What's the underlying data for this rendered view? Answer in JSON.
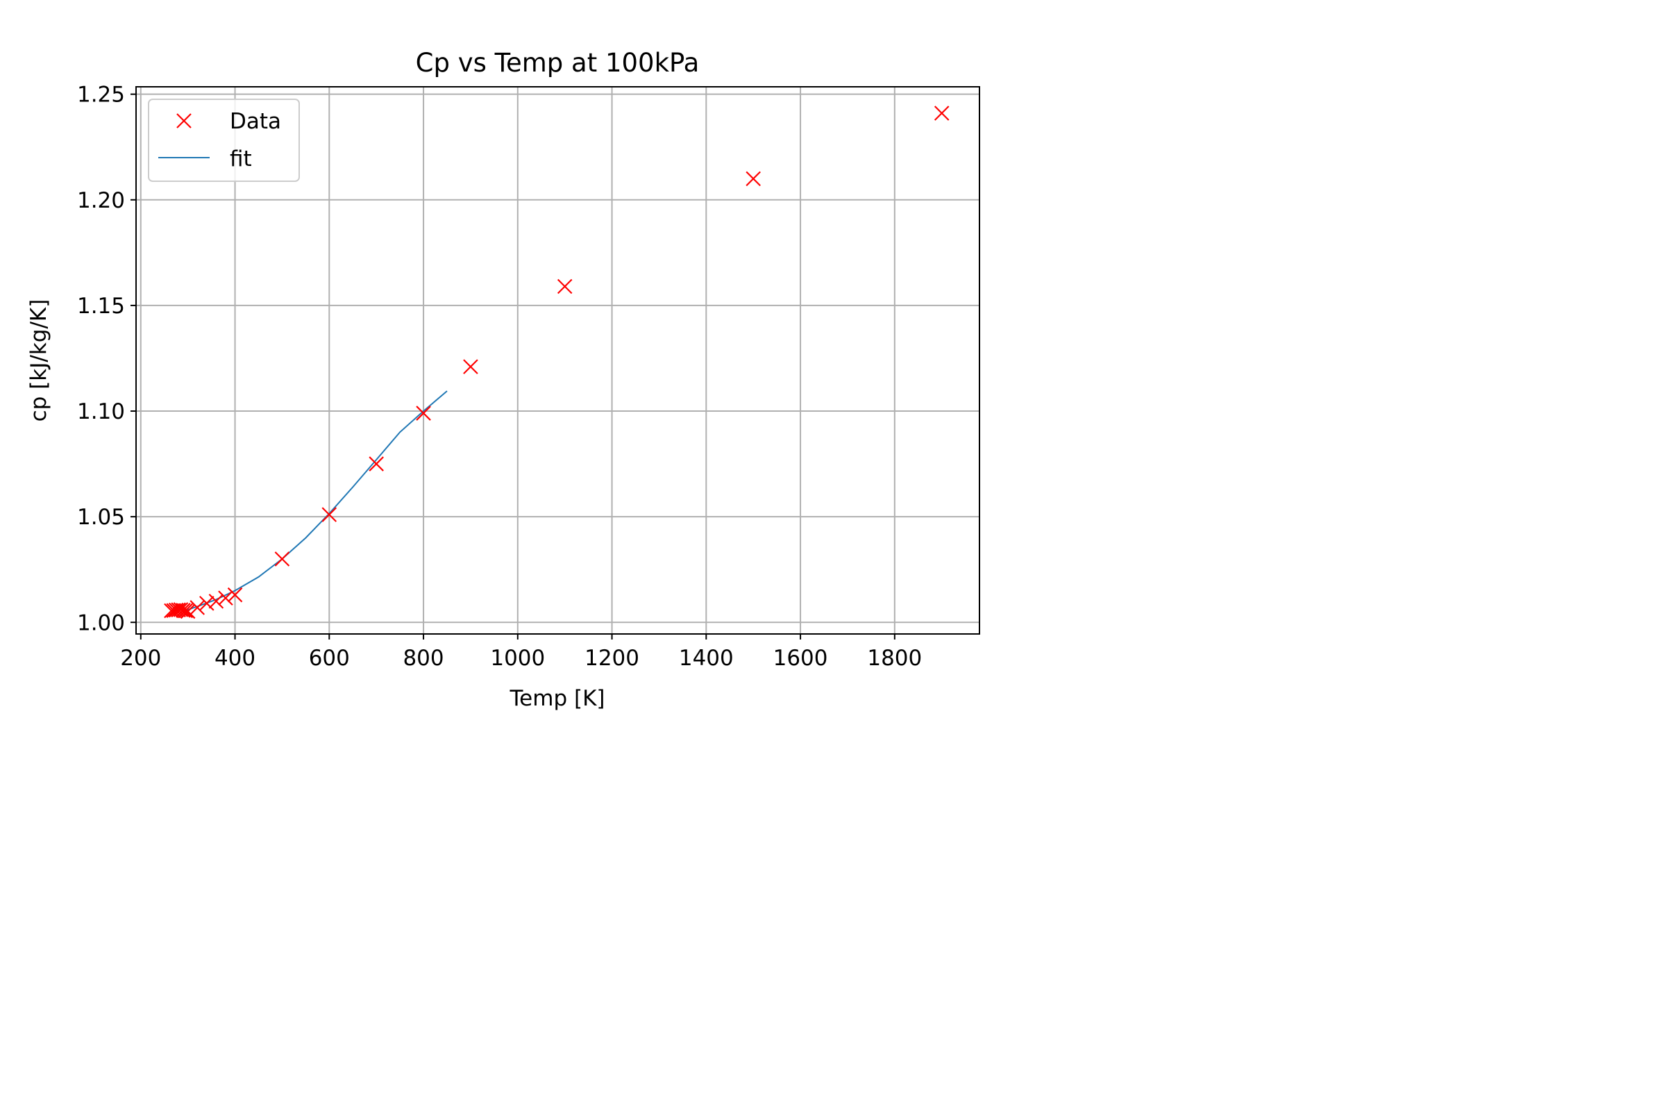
{
  "chart_data": {
    "type": "scatter",
    "title": "Cp vs Temp at 100kPa",
    "xlabel": "Temp [K]",
    "ylabel": "cp [kJ/kg/K]",
    "xlim": [
      190,
      1980
    ],
    "ylim": [
      0.9945,
      1.2535
    ],
    "xticks": [
      200,
      400,
      600,
      800,
      1000,
      1200,
      1400,
      1600,
      1800
    ],
    "xtick_labels": [
      "200",
      "400",
      "600",
      "800",
      "1000",
      "1200",
      "1400",
      "1600",
      "1800"
    ],
    "yticks": [
      1.0,
      1.05,
      1.1,
      1.15,
      1.2,
      1.25
    ],
    "ytick_labels": [
      "1.00",
      "1.05",
      "1.10",
      "1.15",
      "1.20",
      "1.25"
    ],
    "grid": true,
    "legend_position": "top-left",
    "colors": {
      "data": "#ff0000",
      "fit": "#1f77b4",
      "grid": "#b0b0b0"
    },
    "series": [
      {
        "name": "Data",
        "style": "markers-x",
        "x": [
          265,
          270,
          275,
          280,
          285,
          290,
          295,
          300,
          320,
          340,
          360,
          380,
          400,
          500,
          600,
          700,
          800,
          900,
          1100,
          1500,
          1900
        ],
        "y": [
          1.0055,
          1.0056,
          1.0058,
          1.0059,
          1.006,
          1.0057,
          1.0055,
          1.0052,
          1.007,
          1.009,
          1.01,
          1.0115,
          1.013,
          1.03,
          1.051,
          1.075,
          1.099,
          1.121,
          1.159,
          1.21,
          1.241
        ]
      },
      {
        "name": "fit",
        "style": "line",
        "x": [
          290,
          320,
          360,
          400,
          450,
          500,
          550,
          600,
          650,
          700,
          750,
          800,
          850
        ],
        "y": [
          1.0052,
          1.0075,
          1.0108,
          1.015,
          1.0215,
          1.03,
          1.04,
          1.0515,
          1.064,
          1.077,
          1.09,
          1.1,
          1.1095
        ]
      }
    ]
  }
}
